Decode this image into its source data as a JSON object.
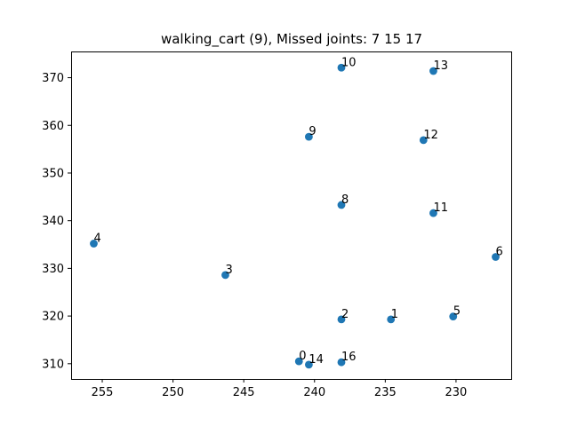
{
  "chart_data": {
    "type": "scatter",
    "title": "walking_cart (9), Missed joints: 7 15 17",
    "xlabel": "",
    "ylabel": "",
    "xlim": [
      257.2,
      226.1
    ],
    "ylim": [
      375.5,
      306.8
    ],
    "x_inverted": true,
    "y_inverted": true,
    "grid": false,
    "marker_color": "#1f77b4",
    "xticks": [
      255,
      250,
      245,
      240,
      235,
      230
    ],
    "yticks": [
      310,
      320,
      330,
      340,
      350,
      360,
      370
    ],
    "points": [
      {
        "label": "0",
        "x": 241.1,
        "y": 310.5
      },
      {
        "label": "14",
        "x": 240.4,
        "y": 309.8
      },
      {
        "label": "16",
        "x": 238.1,
        "y": 310.3
      },
      {
        "label": "2",
        "x": 238.1,
        "y": 319.3
      },
      {
        "label": "1",
        "x": 234.6,
        "y": 319.3
      },
      {
        "label": "5",
        "x": 230.2,
        "y": 319.9
      },
      {
        "label": "3",
        "x": 246.3,
        "y": 328.6
      },
      {
        "label": "6",
        "x": 227.2,
        "y": 332.4
      },
      {
        "label": "4",
        "x": 255.6,
        "y": 335.2
      },
      {
        "label": "11",
        "x": 231.6,
        "y": 341.6
      },
      {
        "label": "8",
        "x": 238.1,
        "y": 343.3
      },
      {
        "label": "12",
        "x": 232.3,
        "y": 356.9
      },
      {
        "label": "9",
        "x": 240.4,
        "y": 357.6
      },
      {
        "label": "13",
        "x": 231.6,
        "y": 371.4
      },
      {
        "label": "10",
        "x": 238.1,
        "y": 372.1
      }
    ]
  }
}
